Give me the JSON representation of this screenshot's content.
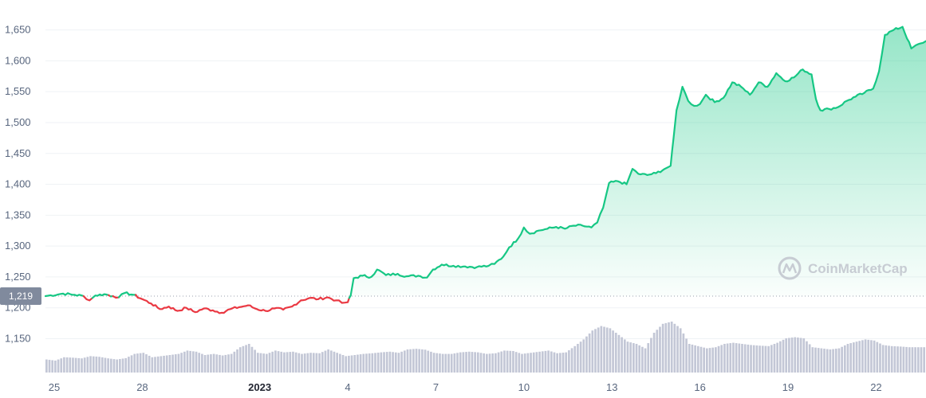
{
  "chart_data": {
    "type": "line",
    "y_ticks": [
      "1,150",
      "1,200",
      "1,250",
      "1,300",
      "1,350",
      "1,400",
      "1,450",
      "1,500",
      "1,550",
      "1,600",
      "1,650"
    ],
    "y_tick_values": [
      1150,
      1200,
      1250,
      1300,
      1350,
      1400,
      1450,
      1500,
      1550,
      1600,
      1650
    ],
    "ylim": [
      1105,
      1672
    ],
    "x_ticks": [
      {
        "label": "25",
        "day": 0
      },
      {
        "label": "28",
        "day": 3
      },
      {
        "label": "2023",
        "day": 7,
        "bold": true
      },
      {
        "label": "4",
        "day": 10
      },
      {
        "label": "7",
        "day": 13
      },
      {
        "label": "10",
        "day": 16
      },
      {
        "label": "13",
        "day": 19
      },
      {
        "label": "16",
        "day": 22
      },
      {
        "label": "19",
        "day": 25
      },
      {
        "label": "22",
        "day": 28
      }
    ],
    "xlim": [
      -0.3,
      29.7
    ],
    "reference": {
      "value": 1219,
      "label": "1,219"
    },
    "up_color": "#16c784",
    "down_color": "#ea3943",
    "volume_color": "#c3c7d6",
    "grid": true,
    "price_points": [
      [
        -0.3,
        1219
      ],
      [
        0.3,
        1223
      ],
      [
        0.7,
        1221
      ],
      [
        1.0,
        1219
      ],
      [
        1.2,
        1212
      ],
      [
        1.4,
        1220
      ],
      [
        1.7,
        1222
      ],
      [
        2.0,
        1219
      ],
      [
        2.2,
        1217
      ],
      [
        2.4,
        1224
      ],
      [
        2.7,
        1221
      ],
      [
        3.0,
        1214
      ],
      [
        3.3,
        1207
      ],
      [
        3.6,
        1198
      ],
      [
        3.9,
        1202
      ],
      [
        4.2,
        1195
      ],
      [
        4.5,
        1200
      ],
      [
        4.8,
        1193
      ],
      [
        5.1,
        1199
      ],
      [
        5.4,
        1196
      ],
      [
        5.7,
        1192
      ],
      [
        6.0,
        1198
      ],
      [
        6.3,
        1201
      ],
      [
        6.6,
        1204
      ],
      [
        6.9,
        1198
      ],
      [
        7.2,
        1195
      ],
      [
        7.5,
        1199
      ],
      [
        7.8,
        1197
      ],
      [
        8.1,
        1202
      ],
      [
        8.4,
        1212
      ],
      [
        8.7,
        1216
      ],
      [
        9.0,
        1214
      ],
      [
        9.3,
        1217
      ],
      [
        9.6,
        1212
      ],
      [
        9.8,
        1208
      ],
      [
        10.0,
        1209
      ],
      [
        10.1,
        1220
      ],
      [
        10.2,
        1248
      ],
      [
        10.5,
        1252
      ],
      [
        10.8,
        1250
      ],
      [
        11.0,
        1262
      ],
      [
        11.3,
        1253
      ],
      [
        11.7,
        1255
      ],
      [
        12.0,
        1251
      ],
      [
        12.4,
        1252
      ],
      [
        12.7,
        1249
      ],
      [
        12.9,
        1262
      ],
      [
        13.2,
        1270
      ],
      [
        13.6,
        1268
      ],
      [
        14.0,
        1267
      ],
      [
        14.4,
        1266
      ],
      [
        14.8,
        1268
      ],
      [
        15.0,
        1271
      ],
      [
        15.3,
        1283
      ],
      [
        15.5,
        1298
      ],
      [
        15.8,
        1312
      ],
      [
        16.0,
        1330
      ],
      [
        16.2,
        1320
      ],
      [
        16.5,
        1325
      ],
      [
        16.8,
        1328
      ],
      [
        17.1,
        1331
      ],
      [
        17.4,
        1328
      ],
      [
        17.7,
        1333
      ],
      [
        18.0,
        1333
      ],
      [
        18.3,
        1330
      ],
      [
        18.5,
        1338
      ],
      [
        18.7,
        1362
      ],
      [
        18.9,
        1402
      ],
      [
        19.2,
        1405
      ],
      [
        19.5,
        1400
      ],
      [
        19.7,
        1425
      ],
      [
        19.9,
        1417
      ],
      [
        20.2,
        1415
      ],
      [
        20.5,
        1418
      ],
      [
        20.8,
        1425
      ],
      [
        21.0,
        1430
      ],
      [
        21.1,
        1475
      ],
      [
        21.2,
        1520
      ],
      [
        21.4,
        1558
      ],
      [
        21.6,
        1535
      ],
      [
        21.8,
        1527
      ],
      [
        22.0,
        1530
      ],
      [
        22.2,
        1545
      ],
      [
        22.5,
        1533
      ],
      [
        22.8,
        1540
      ],
      [
        23.1,
        1565
      ],
      [
        23.4,
        1558
      ],
      [
        23.7,
        1545
      ],
      [
        24.0,
        1565
      ],
      [
        24.3,
        1558
      ],
      [
        24.6,
        1580
      ],
      [
        24.9,
        1567
      ],
      [
        25.2,
        1573
      ],
      [
        25.5,
        1586
      ],
      [
        25.8,
        1578
      ],
      [
        25.95,
        1538
      ],
      [
        26.1,
        1520
      ],
      [
        26.4,
        1522
      ],
      [
        26.7,
        1525
      ],
      [
        27.0,
        1535
      ],
      [
        27.3,
        1542
      ],
      [
        27.6,
        1548
      ],
      [
        27.9,
        1555
      ],
      [
        28.1,
        1583
      ],
      [
        28.3,
        1642
      ],
      [
        28.6,
        1650
      ],
      [
        28.9,
        1655
      ],
      [
        29.2,
        1620
      ],
      [
        29.5,
        1628
      ],
      [
        29.7,
        1632
      ]
    ],
    "volume": [
      0.3,
      0.25,
      0.4,
      0.38,
      0.35,
      0.45,
      0.42,
      0.35,
      0.3,
      0.36,
      0.55,
      0.6,
      0.4,
      0.45,
      0.5,
      0.55,
      0.7,
      0.65,
      0.5,
      0.55,
      0.48,
      0.55,
      0.85,
      1.0,
      0.6,
      0.55,
      0.7,
      0.62,
      0.65,
      0.55,
      0.6,
      0.58,
      0.75,
      0.6,
      0.45,
      0.5,
      0.55,
      0.58,
      0.62,
      0.65,
      0.6,
      0.75,
      0.78,
      0.74,
      0.6,
      0.55,
      0.55,
      0.62,
      0.65,
      0.62,
      0.55,
      0.58,
      0.7,
      0.68,
      0.55,
      0.6,
      0.65,
      0.7,
      0.58,
      0.62,
      0.9,
      1.2,
      1.6,
      1.8,
      1.7,
      1.4,
      1.1,
      1.0,
      0.8,
      1.5,
      1.9,
      2.0,
      1.7,
      1.0,
      0.9,
      0.8,
      0.85,
      1.0,
      1.05,
      1.0,
      0.95,
      0.92,
      0.9,
      1.05,
      1.25,
      1.3,
      1.25,
      0.85,
      0.8,
      0.75,
      0.8,
      1.0,
      1.1,
      1.2,
      1.15,
      0.95,
      0.9,
      0.88,
      0.85,
      0.85
    ]
  },
  "watermark": {
    "text": "CoinMarketCap"
  }
}
